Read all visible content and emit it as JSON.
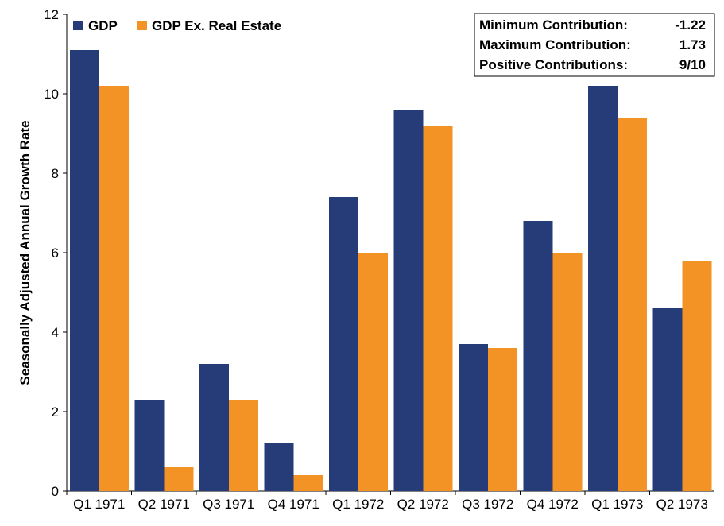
{
  "chart_data": {
    "type": "bar",
    "title": "",
    "xlabel": "",
    "ylabel": "Seasonally Adjusted Annual Growth Rate",
    "ylim": [
      0,
      12
    ],
    "yticks": [
      0,
      2,
      4,
      6,
      8,
      10,
      12
    ],
    "grid": false,
    "legend": "top-left",
    "categories": [
      "Q1 1971",
      "Q2 1971",
      "Q3 1971",
      "Q4 1971",
      "Q1 1972",
      "Q2 1972",
      "Q3 1972",
      "Q4 1972",
      "Q1 1973",
      "Q2 1973"
    ],
    "series": [
      {
        "name": "GDP",
        "color": "#253c78",
        "values": [
          11.1,
          2.3,
          3.2,
          1.2,
          7.4,
          9.6,
          3.7,
          6.8,
          10.2,
          4.6
        ]
      },
      {
        "name": "GDP Ex. Real Estate",
        "color": "#f39325",
        "values": [
          10.2,
          0.6,
          2.3,
          0.4,
          6.0,
          9.2,
          3.6,
          6.0,
          9.4,
          5.8
        ]
      }
    ],
    "annotations": {
      "stats": [
        {
          "label": "Minimum Contribution:",
          "value": "-1.22"
        },
        {
          "label": "Maximum Contribution:",
          "value": "1.73"
        },
        {
          "label": "Positive Contributions:",
          "value": "9/10"
        }
      ]
    }
  }
}
